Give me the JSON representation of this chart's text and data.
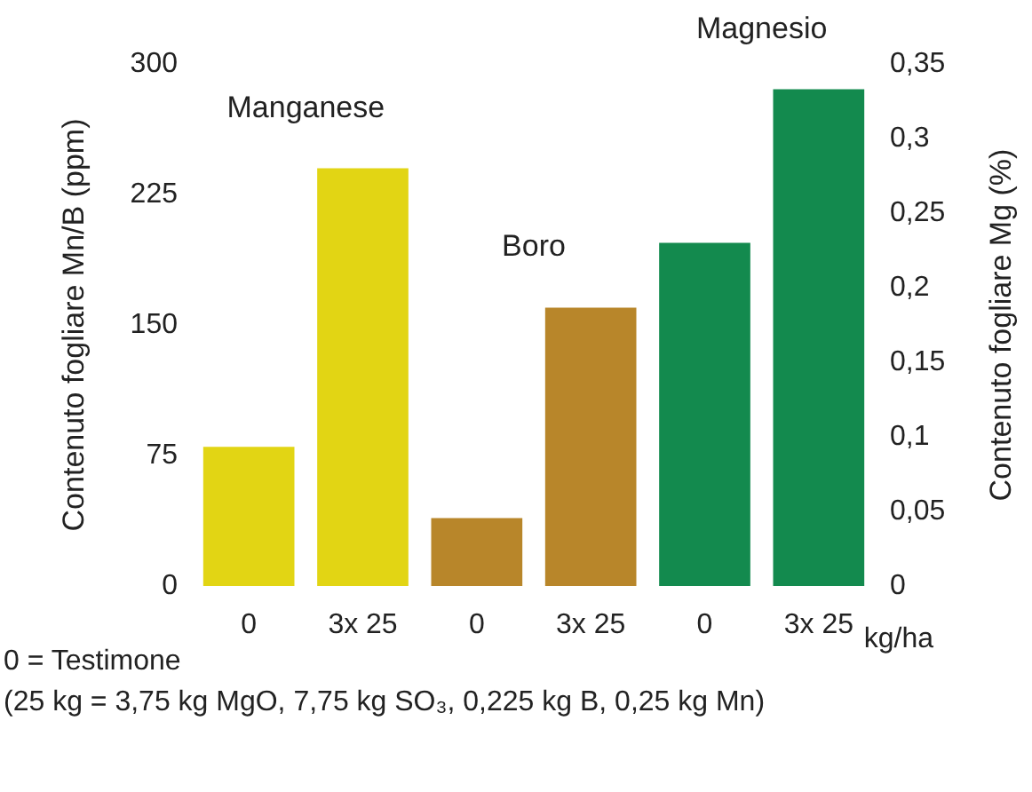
{
  "chart_data": {
    "type": "bar",
    "categories": [
      "0",
      "3x 25",
      "0",
      "3x 25",
      "0",
      "3x 25"
    ],
    "series": [
      {
        "name": "Manganese",
        "color": "#e2d514",
        "values": [
          80,
          240,
          null,
          null,
          null,
          null
        ]
      },
      {
        "name": "Boro",
        "color": "#b8862a",
        "values": [
          null,
          null,
          39,
          160,
          null,
          null
        ]
      },
      {
        "name": "Magnesio",
        "color": "#138a4e",
        "axis": "y2",
        "values": [
          null,
          null,
          null,
          null,
          0.23,
          0.333
        ]
      }
    ],
    "xlabel": "kg/ha",
    "ylabel": "Contenuto fogliare Mn/B (ppm)",
    "y2label": "Contenuto fogliare Mg (%)",
    "ylim": [
      0,
      300
    ],
    "yticks": [
      0,
      75,
      150,
      225,
      300
    ],
    "y2lim": [
      0,
      0.35
    ],
    "y2ticks": [
      {
        "value": 0,
        "label": "0"
      },
      {
        "value": 0.05,
        "label": "0,05"
      },
      {
        "value": 0.1,
        "label": "0,1"
      },
      {
        "value": 0.15,
        "label": "0,15"
      },
      {
        "value": 0.2,
        "label": "0,2"
      },
      {
        "value": 0.25,
        "label": "0,25"
      },
      {
        "value": 0.3,
        "label": "0,3"
      },
      {
        "value": 0.35,
        "label": "0,35"
      }
    ],
    "annotations": [
      "0 = Testimone",
      "(25 kg = 3,75 kg MgO, 7,75 kg SO₃, 0,225 kg B, 0,25 kg Mn)"
    ],
    "grid": false,
    "legend": false
  }
}
